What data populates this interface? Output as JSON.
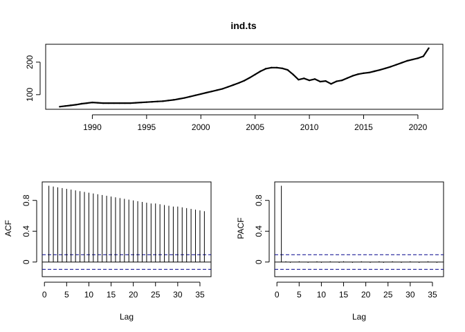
{
  "chart_data": [
    {
      "id": "ts",
      "type": "line",
      "title": "ind.ts",
      "xlabel": "",
      "ylabel": "",
      "xlim": [
        1985.7,
        2022.3
      ],
      "ylim": [
        55,
        255
      ],
      "xticks": [
        1990,
        1995,
        2000,
        2005,
        2010,
        2015,
        2020
      ],
      "yticks": [
        100,
        200
      ],
      "grid": false,
      "series": [
        {
          "x": [
            1987.0,
            1987.5,
            1988.0,
            1988.5,
            1989.0,
            1989.5,
            1990.0,
            1990.5,
            1991.0,
            1991.5,
            1992.0,
            1992.5,
            1993.0,
            1993.5,
            1994.0,
            1994.5,
            1995.0,
            1995.5,
            1996.0,
            1996.5,
            1997.0,
            1997.5,
            1998.0,
            1998.5,
            1999.0,
            1999.5,
            2000.0,
            2000.5,
            2001.0,
            2001.5,
            2002.0,
            2002.5,
            2003.0,
            2003.5,
            2004.0,
            2004.5,
            2005.0,
            2005.5,
            2006.0,
            2006.5,
            2007.0,
            2007.5,
            2008.0,
            2008.5,
            2009.0,
            2009.5,
            2010.0,
            2010.5,
            2011.0,
            2011.5,
            2012.0,
            2012.5,
            2013.0,
            2013.5,
            2014.0,
            2014.5,
            2015.0,
            2015.5,
            2016.0,
            2016.5,
            2017.0,
            2017.5,
            2018.0,
            2018.5,
            2019.0,
            2019.5,
            2020.0,
            2020.5,
            2021.0
          ],
          "values": [
            63,
            65,
            67,
            69,
            72,
            74,
            76,
            75,
            74,
            74,
            74,
            74,
            74,
            74,
            75,
            76,
            77,
            78,
            79,
            80,
            82,
            84,
            87,
            90,
            94,
            98,
            102,
            106,
            110,
            114,
            118,
            124,
            130,
            136,
            143,
            152,
            162,
            172,
            180,
            183,
            183,
            181,
            176,
            162,
            146,
            150,
            144,
            148,
            140,
            142,
            133,
            141,
            144,
            151,
            158,
            163,
            166,
            168,
            172,
            176,
            181,
            186,
            192,
            198,
            204,
            208,
            212,
            218,
            243
          ]
        }
      ]
    },
    {
      "id": "acf",
      "type": "bar",
      "title": "",
      "xlabel": "Lag",
      "ylabel": "ACF",
      "xlim": [
        -0.5,
        37.5
      ],
      "ylim": [
        -0.19,
        1.04
      ],
      "xticks": [
        0,
        5,
        10,
        15,
        20,
        25,
        30,
        35
      ],
      "yticks": [
        0.0,
        0.4,
        0.8
      ],
      "ci": 0.095,
      "x": [
        1,
        2,
        3,
        4,
        5,
        6,
        7,
        8,
        9,
        10,
        11,
        12,
        13,
        14,
        15,
        16,
        17,
        18,
        19,
        20,
        21,
        22,
        23,
        24,
        25,
        26,
        27,
        28,
        29,
        30,
        31,
        32,
        33,
        34,
        35,
        36
      ],
      "values": [
        0.99,
        0.98,
        0.97,
        0.96,
        0.95,
        0.94,
        0.93,
        0.92,
        0.91,
        0.9,
        0.89,
        0.88,
        0.87,
        0.86,
        0.85,
        0.84,
        0.83,
        0.82,
        0.81,
        0.8,
        0.79,
        0.78,
        0.77,
        0.76,
        0.76,
        0.75,
        0.74,
        0.73,
        0.72,
        0.72,
        0.71,
        0.7,
        0.69,
        0.68,
        0.67,
        0.66
      ]
    },
    {
      "id": "pacf",
      "type": "bar",
      "title": "",
      "xlabel": "Lag",
      "ylabel": "PACF",
      "xlim": [
        -0.5,
        37.5
      ],
      "ylim": [
        -0.19,
        1.04
      ],
      "xticks": [
        0,
        5,
        10,
        15,
        20,
        25,
        30,
        35
      ],
      "yticks": [
        0.0,
        0.4,
        0.8
      ],
      "ci": 0.095,
      "x": [
        1,
        2,
        3,
        4,
        5,
        6,
        7,
        8,
        9,
        10,
        11,
        12,
        13,
        14,
        15,
        16,
        17,
        18,
        19,
        20,
        21,
        22,
        23,
        24,
        25,
        26,
        27,
        28,
        29,
        30,
        31,
        32,
        33,
        34,
        35,
        36
      ],
      "values": [
        0.99,
        0.01,
        -0.01,
        0.0,
        0.01,
        0.0,
        -0.01,
        0.0,
        0.01,
        -0.01,
        0.0,
        0.01,
        0.0,
        -0.01,
        0.01,
        0.0,
        -0.01,
        0.0,
        0.01,
        0.0,
        -0.01,
        0.0,
        0.01,
        -0.01,
        0.0,
        0.01,
        0.0,
        -0.01,
        0.0,
        0.01,
        0.0,
        -0.01,
        0.0,
        0.01,
        0.0,
        -0.01
      ]
    }
  ],
  "colors": {
    "line": "#000000",
    "ci": "#00008b"
  }
}
